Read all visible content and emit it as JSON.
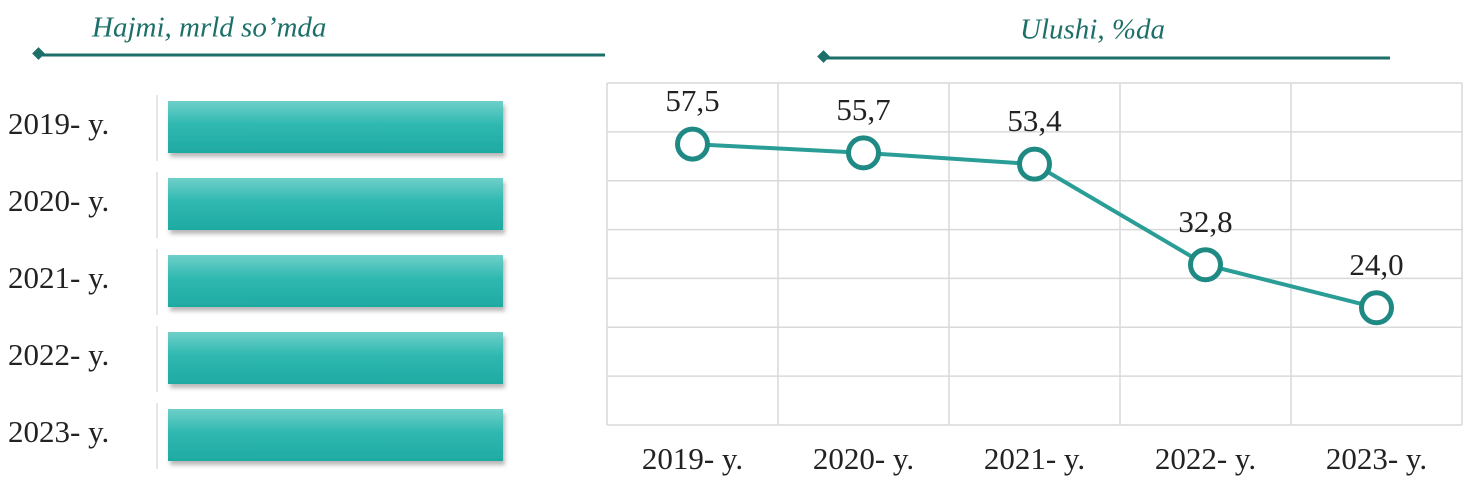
{
  "left_panel": {
    "title": "Hajmi, mrld so’mda",
    "rows": [
      "2019- y.",
      "2020- y.",
      "2021- y.",
      "2022- y.",
      "2023- y."
    ]
  },
  "chart_data": {
    "type": "line",
    "title": "Ulushi, %da",
    "categories": [
      "2019- y.",
      "2020- y.",
      "2021- y.",
      "2022- y.",
      "2023- y."
    ],
    "values": [
      57.5,
      55.7,
      53.4,
      32.8,
      24.0
    ],
    "value_labels": [
      "57,5",
      "55,7",
      "53,4",
      "32,8",
      "24,0"
    ],
    "color": "#2a9d96",
    "ylim": [
      0,
      70
    ],
    "yticks": [
      0,
      10,
      20,
      30,
      40,
      50,
      60,
      70
    ],
    "grid": true
  }
}
